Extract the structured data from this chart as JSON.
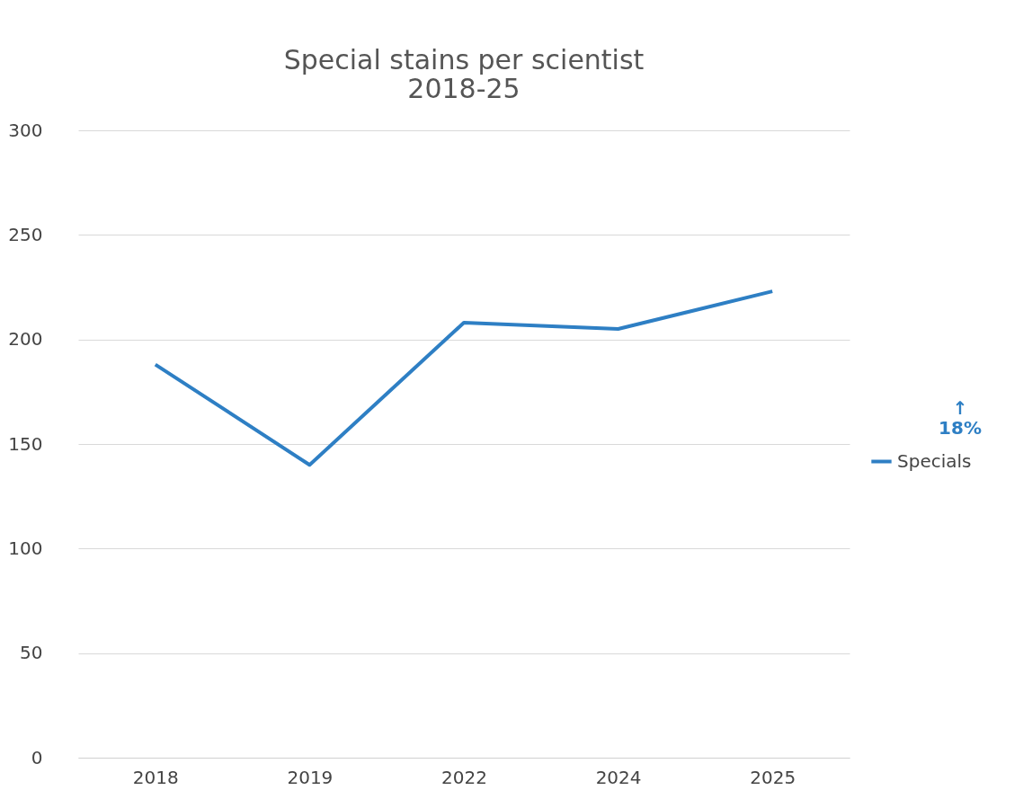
{
  "chart_data": {
    "type": "line",
    "title": "Special stains per scientist\n2018-25",
    "categories": [
      "2018",
      "2019",
      "2022",
      "2024",
      "2025"
    ],
    "series": [
      {
        "name": "Specials",
        "color": "#2e7fc4",
        "values": [
          188,
          140,
          208,
          205,
          223
        ]
      }
    ],
    "ylim": [
      0,
      300
    ],
    "yticks": [
      0,
      50,
      100,
      150,
      200,
      250,
      300
    ],
    "grid": "y",
    "legend": "right",
    "marker": "none",
    "line_style": "solid",
    "annotations": [
      "↑\n18%"
    ]
  }
}
